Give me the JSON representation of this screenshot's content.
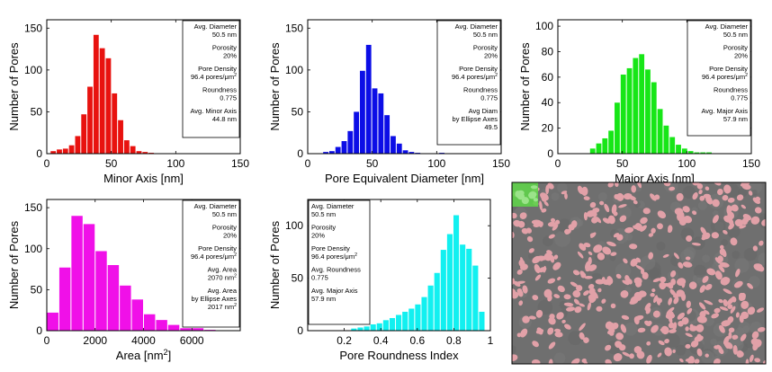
{
  "chart_data": [
    {
      "type": "bar",
      "color": "#e8120f",
      "xlabel": "Minor Axis [nm]",
      "ylabel": "Number of Pores",
      "xlim": [
        0,
        150
      ],
      "ylim": [
        0,
        160
      ],
      "xticks": [
        "0",
        "50",
        "100",
        "150"
      ],
      "yticks": [
        "0",
        "50",
        "100",
        "150"
      ],
      "bin_width": 4.75,
      "x": [
        5,
        9.75,
        14.5,
        19.25,
        24,
        28.75,
        33.5,
        38.25,
        43,
        47.75,
        52.5,
        57.25,
        62,
        66.75,
        71.5,
        76.25,
        81
      ],
      "values": [
        3,
        5,
        6,
        10,
        21,
        47,
        80,
        142,
        126,
        114,
        72,
        40,
        16,
        9,
        3,
        2,
        1
      ],
      "info_lines": [
        "Avg. Diameter",
        "50.5 nm",
        "",
        "Porosity",
        "20%",
        "",
        "Pore Density",
        "96.4 pores/μm²",
        "",
        "Roundness",
        "0.775",
        "",
        "Avg. Minor Axis",
        "44.8 nm"
      ],
      "info_align": "right"
    },
    {
      "type": "bar",
      "color": "#0c0ee6",
      "xlabel": "Pore Equivalent Diameter [nm]",
      "ylabel": "Number of Pores",
      "xlim": [
        0,
        150
      ],
      "ylim": [
        0,
        160
      ],
      "xticks": [
        "0",
        "50",
        "100",
        "150"
      ],
      "yticks": [
        "0",
        "50",
        "100",
        "150"
      ],
      "bin_width": 4.75,
      "x": [
        14,
        18.75,
        23.5,
        28.25,
        33,
        37.75,
        42.5,
        47.25,
        52,
        56.75,
        61.5,
        66.25,
        71,
        75.75,
        80.5,
        85.25,
        104
      ],
      "values": [
        2,
        3,
        8,
        15,
        27,
        50,
        99,
        130,
        78,
        72,
        46,
        21,
        12,
        4,
        2,
        1,
        1
      ],
      "info_lines": [
        "Avg. Diameter",
        "50.5 nm",
        "",
        "Porosity",
        "20%",
        "",
        "Pore Density",
        "96.4 pores/μm²",
        "",
        "Roundness",
        "0.775",
        "",
        "Avg Diam",
        "by Ellipse Axes",
        "49.5"
      ],
      "info_align": "right"
    },
    {
      "type": "bar",
      "color": "#17e617",
      "xlabel": "Major Axis [nm]",
      "ylabel": "Number of Pores",
      "xlim": [
        0,
        150
      ],
      "ylim": [
        0,
        105
      ],
      "xticks": [
        "0",
        "50",
        "100",
        "150"
      ],
      "yticks": [
        "0",
        "20",
        "40",
        "60",
        "80",
        "100"
      ],
      "bin_width": 4.75,
      "x": [
        27,
        31.75,
        36.5,
        41.25,
        46,
        50.75,
        55.5,
        60.25,
        65,
        69.75,
        74.5,
        79.25,
        84,
        88.75,
        93.5,
        98.25,
        103,
        107.75,
        112.5,
        117.25
      ],
      "values": [
        4,
        8,
        12,
        18,
        40,
        62,
        67,
        75,
        78,
        66,
        56,
        35,
        22,
        13,
        7,
        4,
        2,
        1,
        1,
        1
      ],
      "info_lines": [
        "Avg. Diameter",
        "50.5 nm",
        "",
        "Porosity",
        "20%",
        "",
        "Pore Density",
        "96.4 pores/μm²",
        "",
        "Roundness",
        "0.775",
        "",
        "Avg. Major Axis",
        "57.9 nm"
      ],
      "info_align": "right"
    },
    {
      "type": "bar",
      "color": "#f010e8",
      "xlabel": "Area [nm²]",
      "ylabel": "Number of Pores",
      "xlim": [
        0,
        8000
      ],
      "ylim": [
        0,
        160
      ],
      "xticks": [
        "0",
        "2000",
        "4000",
        "6000"
      ],
      "xtick_values": [
        0,
        2000,
        4000,
        6000
      ],
      "yticks": [
        "0",
        "50",
        "100",
        "150"
      ],
      "bin_width": 500,
      "x": [
        250,
        750,
        1250,
        1750,
        2250,
        2750,
        3250,
        3750,
        4250,
        4750,
        5250,
        5750,
        6250,
        6750
      ],
      "values": [
        22,
        77,
        140,
        130,
        97,
        80,
        55,
        38,
        20,
        13,
        7,
        3,
        3,
        1
      ],
      "info_lines": [
        "Avg. Diameter",
        "50.5 nm",
        "",
        "Porosity",
        "20%",
        "",
        "Pore Density",
        "96.4 pores/μm²",
        "",
        "Avg. Area",
        "2070 nm²",
        "",
        "Avg. Area",
        "by Ellipse Axes",
        "2017 nm²"
      ],
      "info_align": "right"
    },
    {
      "type": "bar",
      "color": "#12f0f0",
      "xlabel": "Pore Roundness Index",
      "ylabel": "Number of Pores",
      "xlim": [
        0,
        1
      ],
      "ylim": [
        0,
        125
      ],
      "xticks": [
        "0.2",
        "0.4",
        "0.6",
        "0.8",
        "1"
      ],
      "xtick_values": [
        0.2,
        0.4,
        0.6,
        0.8,
        1.0
      ],
      "yticks": [
        "0",
        "50",
        "100"
      ],
      "bin_width": 0.035,
      "x": [
        0.253,
        0.288,
        0.323,
        0.358,
        0.393,
        0.428,
        0.463,
        0.498,
        0.533,
        0.568,
        0.603,
        0.638,
        0.673,
        0.708,
        0.743,
        0.778,
        0.813,
        0.848,
        0.883,
        0.918,
        0.953
      ],
      "values": [
        2,
        3,
        4,
        6,
        7,
        10,
        12,
        15,
        18,
        21,
        25,
        32,
        43,
        55,
        77,
        92,
        110,
        82,
        78,
        62,
        18
      ],
      "info_lines": [
        "Avg. Diameter",
        "50.5 nm",
        "",
        "Porosity",
        "20%",
        "",
        "Pore Density",
        "96.4 pores/μm²",
        "",
        "Avg. Roundness",
        "0.775",
        "",
        "Avg. Major Axis",
        "57.9 nm"
      ],
      "info_align": "left"
    }
  ],
  "sem_image": {
    "background": "#6f6f6f",
    "pore_color": "#e2a1a8",
    "highlight_color": "#5fd14a"
  }
}
